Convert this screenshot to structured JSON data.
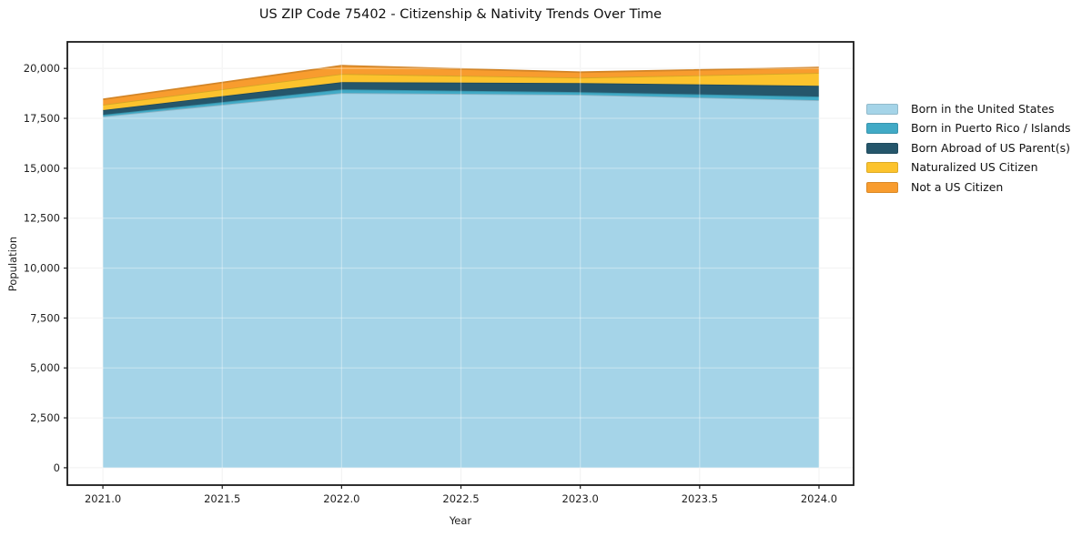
{
  "figure": {
    "title": "US ZIP Code 75402 - Citizenship & Nativity Trends Over Time",
    "background_color": "#ffffff",
    "frame_color": "#1a1a1a",
    "grid_color": "#ececec",
    "text_color": "#1f1f1f"
  },
  "chart_data": {
    "type": "area",
    "stacked": true,
    "title": "US ZIP Code 75402 - Citizenship & Nativity Trends Over Time",
    "xlabel": "Year",
    "ylabel": "Population",
    "x": [
      2021,
      2022,
      2023,
      2024
    ],
    "series": [
      {
        "name": "Born in the United States",
        "color": "#a5d4e8",
        "values": [
          17590,
          18770,
          18680,
          18410
        ]
      },
      {
        "name": "Born in Puerto Rico / Islands",
        "color": "#41aac6",
        "values": [
          90,
          180,
          135,
          180
        ]
      },
      {
        "name": "Born Abroad of US Parent(s)",
        "color": "#25566b",
        "values": [
          230,
          365,
          455,
          545
        ]
      },
      {
        "name": "Naturalized US Citizen",
        "color": "#fcc32d",
        "values": [
          270,
          410,
          270,
          640
        ]
      },
      {
        "name": "Not a US Citizen",
        "color": "#f89c2e",
        "values": [
          275,
          410,
          270,
          270
        ]
      }
    ],
    "totals": [
      18455,
      20135,
      19810,
      20045
    ],
    "x_ticks": [
      2021.0,
      2021.5,
      2022.0,
      2022.5,
      2023.0,
      2023.5,
      2024.0
    ],
    "x_tick_labels": [
      "2021.0",
      "2021.5",
      "2022.0",
      "2022.5",
      "2023.0",
      "2023.5",
      "2024.0"
    ],
    "y_ticks": [
      0,
      2500,
      5000,
      7500,
      10000,
      12500,
      15000,
      17500,
      20000
    ],
    "y_tick_labels": [
      "0",
      "2,500",
      "5,000",
      "7,500",
      "10,000",
      "12,500",
      "15,000",
      "17,500",
      "20,000"
    ],
    "xlim": [
      2020.851,
      2024.145
    ],
    "ylim": [
      -870,
      21330
    ],
    "grid": true,
    "legend_position": "right-outside"
  }
}
